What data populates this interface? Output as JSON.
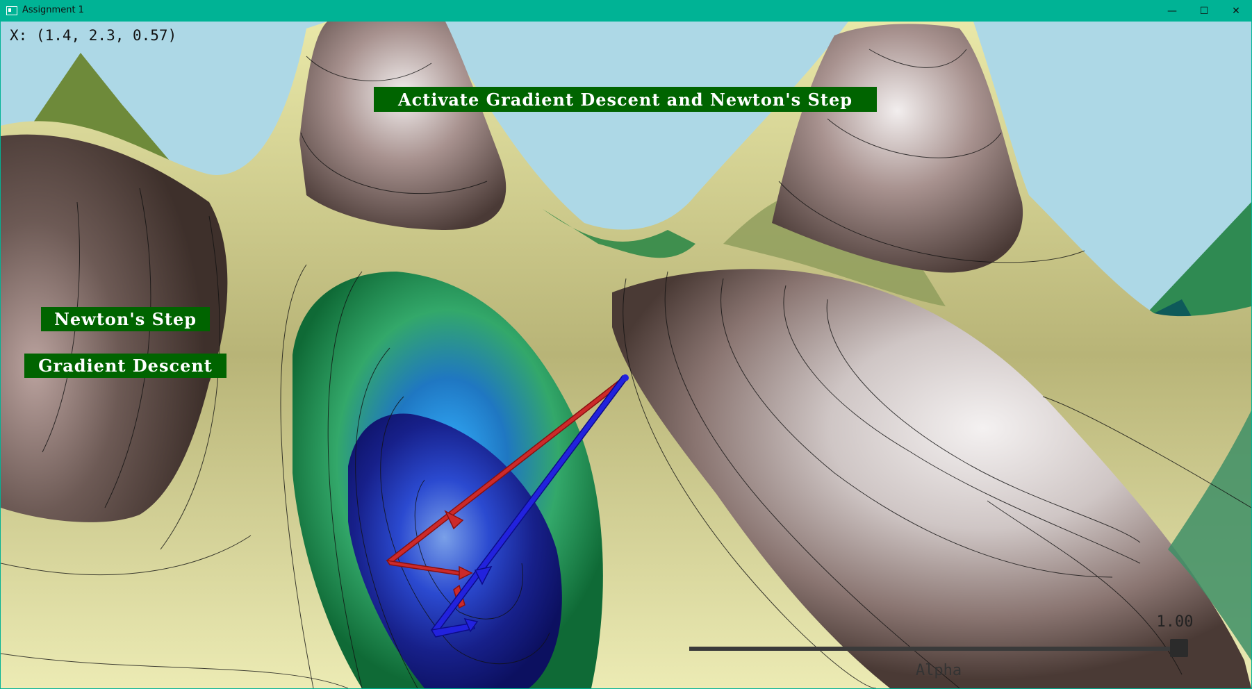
{
  "window": {
    "title": "Assignment 1",
    "controls": {
      "minimize": "—",
      "maximize": "☐",
      "close": "✕"
    }
  },
  "viewport": {
    "coordinate_readout": "X: (1.4, 2.3, 0.57)",
    "buttons": {
      "activate": "Activate Gradient Descent and Newton's Step",
      "newton": "Newton's Step",
      "gradient": "Gradient Descent"
    },
    "slider": {
      "label": "Alpha",
      "value_text": "1.00",
      "level": 1.0
    },
    "arrow_colors": {
      "newton": "#cc2a2a",
      "gradient": "#2222dd"
    }
  }
}
